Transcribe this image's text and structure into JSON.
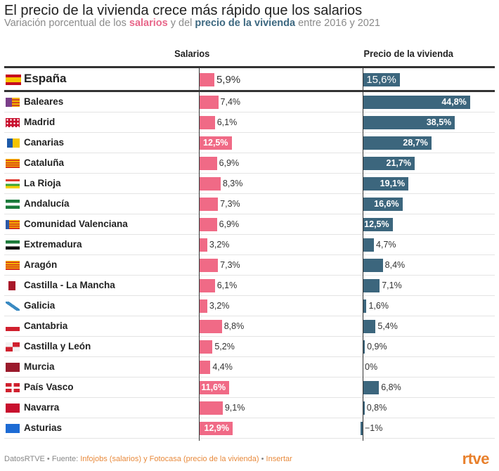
{
  "colors": {
    "salarios": "#f06a86",
    "vivienda": "#3c667d",
    "source_link": "#e88a3c",
    "logo": "#e8802c"
  },
  "chart_data": {
    "type": "bar",
    "title": "El precio de la vivienda crece más rápido que los salarios",
    "subtitle": {
      "prefix": "Variación porcentual de los ",
      "salarios": "salarios",
      "middle": " y del ",
      "vivienda": "precio de la vivienda",
      "suffix": " entre 2016 y 2021"
    },
    "columns": [
      "Salarios",
      "Precio de la vivienda"
    ],
    "categories": [
      "España",
      "Baleares",
      "Madrid",
      "Canarias",
      "Cataluña",
      "La Rioja",
      "Andalucía",
      "Comunidad Valenciana",
      "Extremadura",
      "Aragón",
      "Castilla - La Mancha",
      "Galicia",
      "Cantabria",
      "Castilla y León",
      "Murcia",
      "País Vasco",
      "Navarra",
      "Asturias"
    ],
    "flags": [
      "spain-flag-icon",
      "baleares-flag-icon",
      "madrid-flag-icon",
      "canarias-flag-icon",
      "cataluna-flag-icon",
      "la-rioja-flag-icon",
      "andalucia-flag-icon",
      "valenciana-flag-icon",
      "extremadura-flag-icon",
      "aragon-flag-icon",
      "castilla-la-mancha-flag-icon",
      "galicia-flag-icon",
      "cantabria-flag-icon",
      "castilla-y-leon-flag-icon",
      "murcia-flag-icon",
      "pais-vasco-flag-icon",
      "navarra-flag-icon",
      "asturias-flag-icon"
    ],
    "series": [
      {
        "name": "Salarios",
        "values": [
          5.9,
          7.4,
          6.1,
          12.5,
          6.9,
          8.3,
          7.3,
          6.9,
          3.2,
          7.3,
          6.1,
          3.2,
          8.8,
          5.2,
          4.4,
          11.6,
          9.1,
          12.9
        ],
        "labels": [
          "5,9%",
          "7,4%",
          "6,1%",
          "12,5%",
          "6,9%",
          "8,3%",
          "7,3%",
          "6,9%",
          "3,2%",
          "7,3%",
          "6,1%",
          "3,2%",
          "8,8%",
          "5,2%",
          "4,4%",
          "11,6%",
          "9,1%",
          "12,9%"
        ]
      },
      {
        "name": "Precio de la vivienda",
        "values": [
          15.6,
          44.8,
          38.5,
          28.7,
          21.7,
          19.1,
          16.6,
          12.5,
          4.7,
          8.4,
          7.1,
          1.6,
          5.4,
          0.9,
          0,
          6.8,
          0.8,
          -1
        ],
        "labels": [
          "15,6%",
          "44,8%",
          "38,5%",
          "28,7%",
          "21,7%",
          "19,1%",
          "16,6%",
          "12,5%",
          "4,7%",
          "8,4%",
          "7,1%",
          "1,6%",
          "5,4%",
          "0,9%",
          "0%",
          "6,8%",
          "0,8%",
          "−1%"
        ]
      }
    ],
    "ylabel": "",
    "xlabel": ""
  },
  "footer": {
    "brand": "DatosRTVE",
    "sep1": " • Fuente: ",
    "source": "Infojobs (salarios) y Fotocasa (precio de la vivienda)",
    "sep2": " • ",
    "insert": "Insertar",
    "logo": "rtve"
  }
}
